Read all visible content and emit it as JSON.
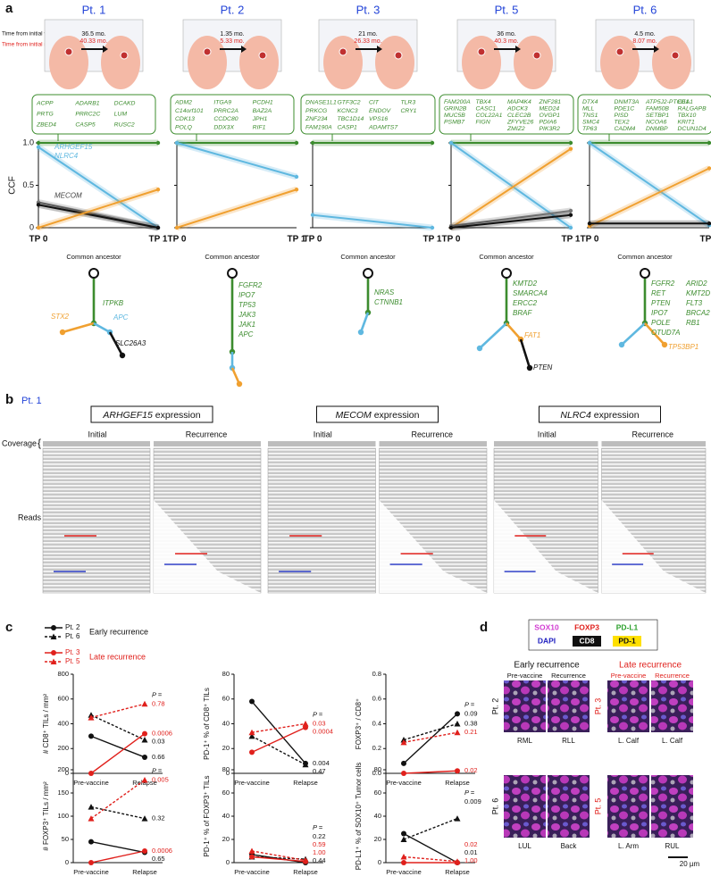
{
  "panel_a": {
    "label": "a",
    "legend_vacc": "Time from initial vaccination:",
    "legend_resect": "Time from initial resection:",
    "ccf_axis": "CCF",
    "ccf_ticks": [
      {
        "value": 0,
        "label": "0"
      },
      0.5,
      {
        "value": 1,
        "label": "1.0"
      }
    ],
    "ccf_lim": [
      0,
      1
    ],
    "tp0": "TP 0",
    "tp1": "TP 1",
    "common_ancestor": "Common ancestor",
    "patients": [
      {
        "name": "Pt. 1",
        "time_vacc": "36.5 mo.",
        "time_resect": "40.33 mo.",
        "genes": [
          [
            "ACPP",
            "ADARB1",
            "DCAKD"
          ],
          [
            "PRTG",
            "PRRC2C",
            "LUM"
          ],
          [
            "ZBED4",
            "CASP5",
            "RUSC2"
          ]
        ],
        "clones": [
          {
            "color": "#3c8c2e",
            "values": [
              1,
              1
            ]
          },
          {
            "color": "#5fb8e0",
            "values": [
              0.95,
              0
            ],
            "labels": [
              "ARHGEF15",
              "NLRC4"
            ]
          },
          {
            "color": "#777777",
            "values": [
              0.3,
              0
            ],
            "labels": [
              "MECOM"
            ]
          },
          {
            "color": "#111111",
            "values": [
              0.27,
              0
            ]
          },
          {
            "color": "#f0a030",
            "values": [
              0,
              0.45
            ]
          }
        ],
        "tree": [
          {
            "text": "ITPKB",
            "color": "#3c8c2e"
          },
          {
            "text": "STX2",
            "color": "#f0a030"
          },
          {
            "text": "APC",
            "color": "#5fb8e0"
          },
          {
            "text": "SLC26A3",
            "color": "#111111"
          }
        ]
      },
      {
        "name": "Pt. 2",
        "time_vacc": "1.35 mo.",
        "time_resect": "5.33 mo.",
        "genes": [
          [
            "ADM2",
            "ITGA9",
            "PCDH1"
          ],
          [
            "C14orf101",
            "PRRC2A",
            "BAZ2A"
          ],
          [
            "CDK13",
            "CCDC80",
            "JPH1"
          ],
          [
            "POLQ",
            "DDX3X",
            "RIF1"
          ]
        ],
        "clones": [
          {
            "color": "#3c8c2e",
            "values": [
              1,
              1
            ]
          },
          {
            "color": "#5fb8e0",
            "values": [
              1,
              0.6
            ]
          },
          {
            "color": "#f0a030",
            "values": [
              0,
              0.45
            ]
          }
        ],
        "tree": [
          {
            "text": "FGFR2",
            "color": "#3c8c2e"
          },
          {
            "text": "IPO7",
            "color": "#3c8c2e"
          },
          {
            "text": "TP53",
            "color": "#3c8c2e"
          },
          {
            "text": "JAK3",
            "color": "#3c8c2e"
          },
          {
            "text": "JAK1",
            "color": "#3c8c2e"
          },
          {
            "text": "APC",
            "color": "#3c8c2e"
          }
        ]
      },
      {
        "name": "Pt. 3",
        "time_vacc": "21 mo.",
        "time_resect": "26.33 mo.",
        "genes": [
          [
            "DNASE1L1",
            "GTF3C2",
            "CIT",
            "TLR3"
          ],
          [
            "PRKCG",
            "KCNC3",
            "ENDOV",
            "CRY1"
          ],
          [
            "ZNF234",
            "TBC1D14",
            "VPS16"
          ],
          [
            "FAM190A",
            "CASP1",
            "ADAMTS7"
          ]
        ],
        "clones": [
          {
            "color": "#3c8c2e",
            "values": [
              1,
              1
            ]
          },
          {
            "color": "#5fb8e0",
            "values": [
              0.15,
              0
            ]
          }
        ],
        "tree": [
          {
            "text": "NRAS",
            "color": "#3c8c2e"
          },
          {
            "text": "CTNNB1",
            "color": "#3c8c2e"
          }
        ]
      },
      {
        "name": "Pt. 5",
        "time_vacc": "36 mo.",
        "time_resect": "40.3 mo.",
        "genes": [
          [
            "FAM200A",
            "TBX4",
            "MAP4K4",
            "ZNF281"
          ],
          [
            "GRIN2B",
            "CASC1",
            "ADCK3",
            "MED24"
          ],
          [
            "MUC5B",
            "COL22A1",
            "CLEC2B",
            "OVGP1"
          ],
          [
            "PSMB7",
            "FIGN",
            "ZFYVE26",
            "PDIA6"
          ],
          [
            "",
            "",
            "ZMIZ2",
            "PIK3R2"
          ]
        ],
        "clones": [
          {
            "color": "#3c8c2e",
            "values": [
              1,
              1
            ]
          },
          {
            "color": "#5fb8e0",
            "values": [
              1,
              0
            ]
          },
          {
            "color": "#f0a030",
            "values": [
              0,
              0.93
            ]
          },
          {
            "color": "#777777",
            "values": [
              0.02,
              0.2
            ]
          },
          {
            "color": "#111111",
            "values": [
              0,
              0.15
            ]
          }
        ],
        "tree": [
          {
            "text": "KMTD2",
            "color": "#3c8c2e"
          },
          {
            "text": "SMARCA4",
            "color": "#3c8c2e"
          },
          {
            "text": "ERCC2",
            "color": "#3c8c2e"
          },
          {
            "text": "BRAF",
            "color": "#3c8c2e"
          },
          {
            "text": "FAT1",
            "color": "#f0a030"
          },
          {
            "text": "PTEN",
            "color": "#111111"
          }
        ]
      },
      {
        "name": "Pt. 6",
        "time_vacc": "4.5 mo.",
        "time_resect": "8.07 mo.",
        "genes": [
          [
            "DTX4",
            "DNMT3A",
            "ATP5J2-PTCD1",
            "EEA1"
          ],
          [
            "MLL",
            "PDE1C",
            "FAM50B",
            "RALGAPB"
          ],
          [
            "TNS1",
            "PISD",
            "SETBP1",
            "TBX10"
          ],
          [
            "SMC4",
            "TEX2",
            "NCOA6",
            "KRIT1"
          ],
          [
            "TP63",
            "CADM4",
            "DNMBP",
            "DCUN1D4"
          ]
        ],
        "clones": [
          {
            "color": "#3c8c2e",
            "values": [
              1,
              1
            ]
          },
          {
            "color": "#5fb8e0",
            "values": [
              1,
              0.03
            ]
          },
          {
            "color": "#f0a030",
            "values": [
              0.02,
              0.7
            ]
          },
          {
            "color": "#111111",
            "values": [
              0.05,
              0.05
            ]
          }
        ],
        "tree": [
          {
            "text": "FGFR2",
            "color": "#3c8c2e"
          },
          {
            "text": "RET",
            "color": "#3c8c2e"
          },
          {
            "text": "PTEN",
            "color": "#3c8c2e"
          },
          {
            "text": "IPO7",
            "color": "#3c8c2e"
          },
          {
            "text": "POLE",
            "color": "#3c8c2e"
          },
          {
            "text": "OTUD7A",
            "color": "#3c8c2e"
          },
          {
            "text": "ARID2",
            "color": "#3c8c2e"
          },
          {
            "text": "KMT2D",
            "color": "#3c8c2e"
          },
          {
            "text": "FLT3",
            "color": "#3c8c2e"
          },
          {
            "text": "BRCA2",
            "color": "#3c8c2e"
          },
          {
            "text": "RB1",
            "color": "#3c8c2e"
          },
          {
            "text": "TP53BP1",
            "color": "#f0a030"
          }
        ]
      }
    ]
  },
  "panel_b": {
    "label": "b",
    "patient": "Pt. 1",
    "coverage": "Coverage",
    "reads": "Reads",
    "tracks": [
      {
        "gene": "ARHGEF15",
        "rest": "expression",
        "initial": "Initial",
        "recurrence": "Recurrence"
      },
      {
        "gene": "MECOM",
        "rest": "expression",
        "initial": "Initial",
        "recurrence": "Recurrence"
      },
      {
        "gene": "NLRC4",
        "rest": "expression",
        "initial": "Initial",
        "recurrence": "Recurrence"
      }
    ]
  },
  "panel_c": {
    "label": "c",
    "p_prefix": "P =",
    "x_labels": [
      "Pre-vaccine",
      "Relapse"
    ],
    "groups": [
      {
        "name": "Early recurrence",
        "color": "#111111"
      },
      {
        "name": "Late recurrence",
        "color": "#e0201c"
      }
    ],
    "series": [
      {
        "name": "Pt. 2",
        "color": "#111111",
        "dashed": false,
        "marker": "circle"
      },
      {
        "name": "Pt. 6",
        "color": "#111111",
        "dashed": true,
        "marker": "triangle"
      },
      {
        "name": "Pt. 3",
        "color": "#e0201c",
        "dashed": false,
        "marker": "circle"
      },
      {
        "name": "Pt. 5",
        "color": "#e0201c",
        "dashed": true,
        "marker": "triangle"
      }
    ],
    "plots": [
      {
        "ylabel": "# CD8⁺ TILs / mm²",
        "ylim": [
          0,
          800
        ],
        "yticks": [
          0,
          200,
          400,
          600,
          800
        ],
        "values": [
          [
            300,
            130
          ],
          [
            470,
            270
          ],
          [
            0,
            320
          ],
          [
            450,
            560
          ]
        ],
        "p_values": [
          "0.66",
          "0.03",
          "0.0006",
          "0.78"
        ]
      },
      {
        "ylabel": "PD-1⁺ % of CD8⁺ TILs",
        "ylim": [
          0,
          80
        ],
        "yticks": [
          0,
          20,
          40,
          60,
          80
        ],
        "values": [
          [
            58,
            8
          ],
          [
            30,
            7
          ],
          [
            17,
            37
          ],
          [
            33,
            40
          ]
        ],
        "p_values": [
          "0.004",
          "0.47",
          "0.0004",
          "0.03"
        ]
      },
      {
        "ylabel": "FOXP3⁺ / CD8⁺",
        "ylim": [
          0,
          0.8
        ],
        "yticks": [
          {
            "value": 0,
            "label": "0.0"
          },
          0.2,
          0.4,
          0.6,
          0.8
        ],
        "values": [
          [
            0.08,
            0.48
          ],
          [
            0.27,
            0.4
          ],
          [
            0,
            0.02
          ],
          [
            0.25,
            0.33
          ]
        ],
        "p_values": [
          "0.09",
          "0.38",
          "0.02",
          "0.21"
        ]
      },
      {
        "ylabel": "# FOXP3⁺ TILs / mm²",
        "ylim": [
          0,
          200
        ],
        "yticks": [
          0,
          50,
          100,
          150,
          200
        ],
        "values": [
          [
            45,
            22
          ],
          [
            120,
            95
          ],
          [
            0,
            25
          ],
          [
            95,
            178
          ]
        ],
        "p_values": [
          "0.65",
          "0.32",
          "0.0006",
          "0.005"
        ]
      },
      {
        "ylabel": "PD-1⁺ % of FOXP3⁺ TILs",
        "ylim": [
          0,
          80
        ],
        "yticks": [
          0,
          20,
          40,
          60,
          80
        ],
        "values": [
          [
            7,
            0
          ],
          [
            5,
            3
          ],
          [
            5,
            1
          ],
          [
            10,
            2
          ]
        ],
        "p_values": [
          "0.44",
          "0.22",
          "1.00",
          "0.59"
        ]
      },
      {
        "ylabel": "PD-L1⁺ % of SOX10⁺ Tumor cells",
        "ylim": [
          0,
          80
        ],
        "yticks": [
          0,
          20,
          40,
          60,
          80
        ],
        "values": [
          [
            25,
            0
          ],
          [
            20,
            38
          ],
          [
            0,
            0
          ],
          [
            5,
            1
          ]
        ],
        "p_values": [
          "0.01",
          "0.009",
          "1.00",
          "0.02"
        ]
      }
    ]
  },
  "panel_d": {
    "label": "d",
    "stains": [
      {
        "name": "SOX10",
        "color": "#d23cd2"
      },
      {
        "name": "FOXP3",
        "color": "#e0201c"
      },
      {
        "name": "PD-L1",
        "color": "#2ca02c"
      },
      {
        "name": "DAPI",
        "color": "#2020c0"
      },
      {
        "name": "CD8",
        "color": "#ffffff"
      },
      {
        "name": "PD-1",
        "color": "#111111"
      }
    ],
    "early": "Early recurrence",
    "late": "Late recurrence",
    "pre": "Pre-vaccine",
    "rec": "Recurrence",
    "rows": [
      {
        "early_patient": "Pt. 2",
        "late_patient": "Pt. 3",
        "sites": [
          "RML",
          "RLL",
          "L. Calf",
          "L. Calf"
        ]
      },
      {
        "early_patient": "Pt. 6",
        "late_patient": "Pt. 5",
        "sites": [
          "LUL",
          "Back",
          "L. Arm",
          "RUL"
        ]
      }
    ],
    "scale": "20 µm"
  }
}
